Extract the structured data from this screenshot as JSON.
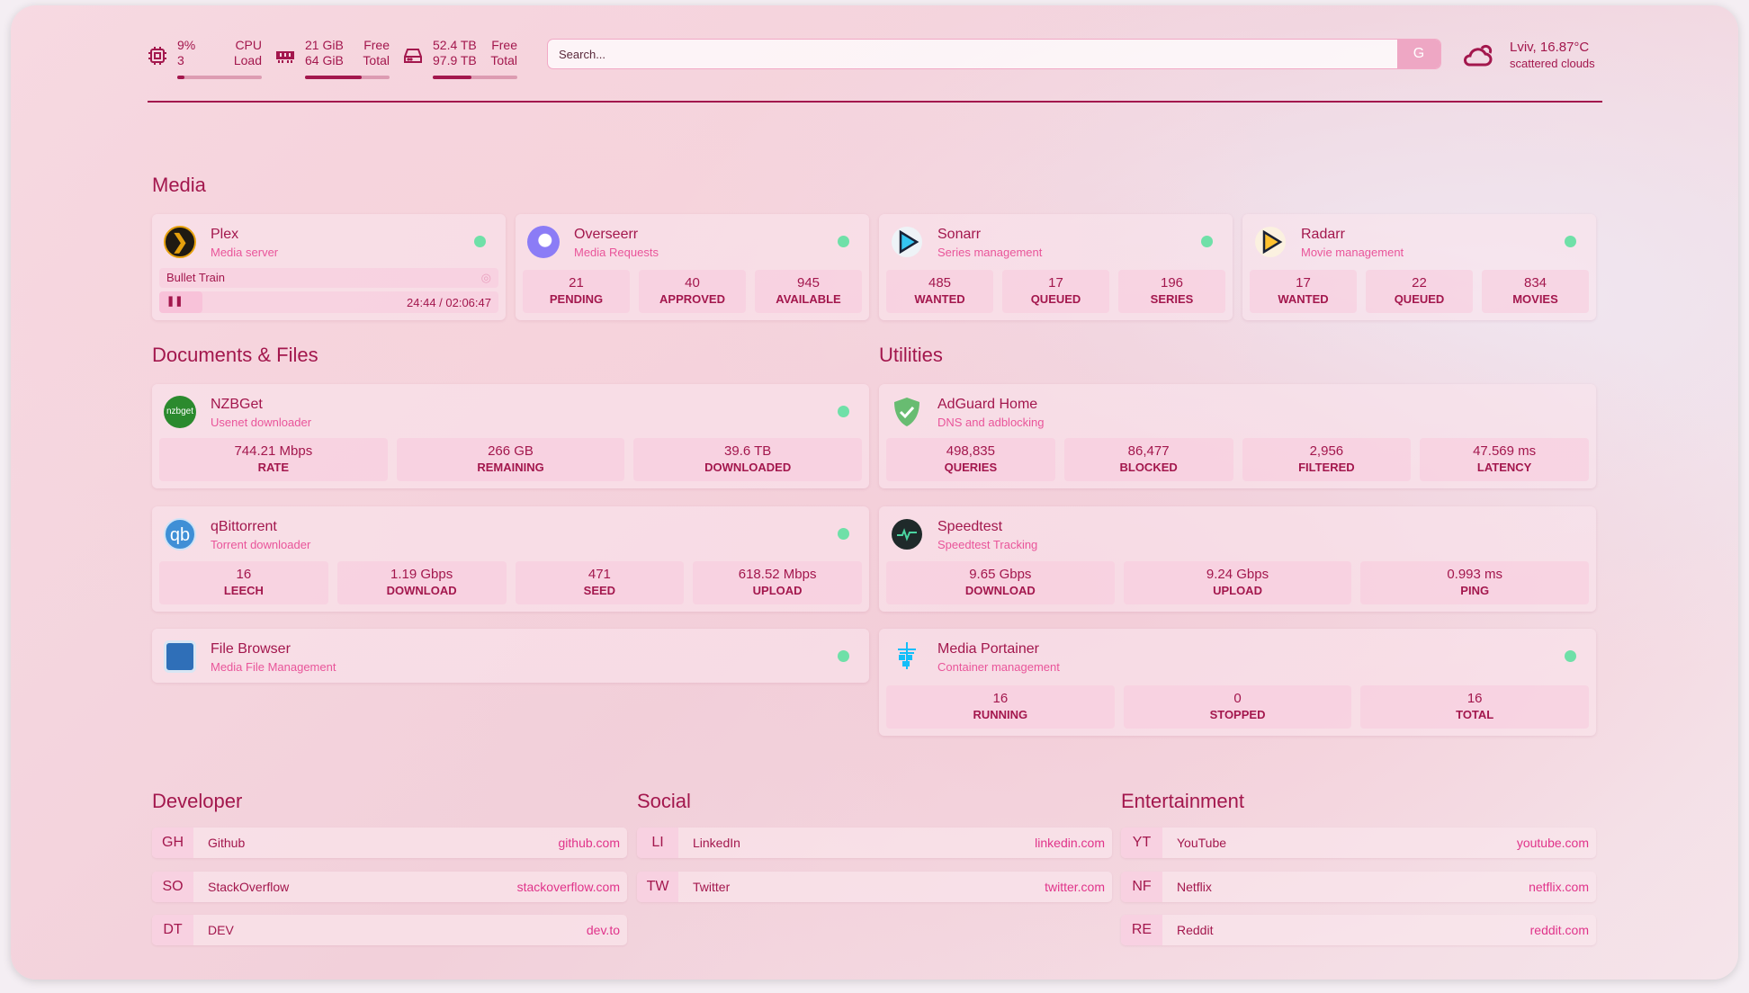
{
  "header": {
    "cpu": {
      "icon": "cpu-icon",
      "value": "9%",
      "cores": "3",
      "label1": "CPU",
      "label2": "Load",
      "fill": 9
    },
    "memory": {
      "icon": "memory-icon",
      "free": "21 GiB",
      "total": "64 GiB",
      "label1": "Free",
      "label2": "Total",
      "fill": 67
    },
    "disk": {
      "icon": "disk-icon",
      "free": "52.4 TB",
      "total": "97.9 TB",
      "label1": "Free",
      "label2": "Total",
      "fill": 46
    },
    "search": {
      "placeholder": "Search...",
      "button": "G"
    },
    "weather": {
      "icon": "cloud-sun-icon",
      "location": "Lviv, 16.87°C",
      "desc": "scattered clouds"
    }
  },
  "sections": {
    "media": "Media",
    "docs": "Documents & Files",
    "utilities": "Utilities",
    "developer": "Developer",
    "social": "Social",
    "entertainment": "Entertainment"
  },
  "media": {
    "plex": {
      "title": "Plex",
      "subtitle": "Media server",
      "now_playing": "Bullet Train",
      "progress": "24:44 / 02:06:47"
    },
    "overseerr": {
      "title": "Overseerr",
      "subtitle": "Media Requests",
      "stats": [
        {
          "v": "21",
          "k": "PENDING"
        },
        {
          "v": "40",
          "k": "APPROVED"
        },
        {
          "v": "945",
          "k": "AVAILABLE"
        }
      ]
    },
    "sonarr": {
      "title": "Sonarr",
      "subtitle": "Series management",
      "stats": [
        {
          "v": "485",
          "k": "WANTED"
        },
        {
          "v": "17",
          "k": "QUEUED"
        },
        {
          "v": "196",
          "k": "SERIES"
        }
      ]
    },
    "radarr": {
      "title": "Radarr",
      "subtitle": "Movie management",
      "stats": [
        {
          "v": "17",
          "k": "WANTED"
        },
        {
          "v": "22",
          "k": "QUEUED"
        },
        {
          "v": "834",
          "k": "MOVIES"
        }
      ]
    }
  },
  "docs": {
    "nzbget": {
      "title": "NZBGet",
      "subtitle": "Usenet downloader",
      "logo": "nzbget",
      "stats": [
        {
          "v": "744.21 Mbps",
          "k": "RATE"
        },
        {
          "v": "266 GB",
          "k": "REMAINING"
        },
        {
          "v": "39.6 TB",
          "k": "DOWNLOADED"
        }
      ]
    },
    "qbit": {
      "title": "qBittorrent",
      "subtitle": "Torrent downloader",
      "logo": "qb",
      "stats": [
        {
          "v": "16",
          "k": "LEECH"
        },
        {
          "v": "1.19 Gbps",
          "k": "DOWNLOAD"
        },
        {
          "v": "471",
          "k": "SEED"
        },
        {
          "v": "618.52 Mbps",
          "k": "UPLOAD"
        }
      ]
    },
    "filebrowser": {
      "title": "File Browser",
      "subtitle": "Media File Management"
    }
  },
  "utilities": {
    "adguard": {
      "title": "AdGuard Home",
      "subtitle": "DNS and adblocking",
      "stats": [
        {
          "v": "498,835",
          "k": "QUERIES"
        },
        {
          "v": "86,477",
          "k": "BLOCKED"
        },
        {
          "v": "2,956",
          "k": "FILTERED"
        },
        {
          "v": "47.569 ms",
          "k": "LATENCY"
        }
      ]
    },
    "speedtest": {
      "title": "Speedtest",
      "subtitle": "Speedtest Tracking",
      "stats": [
        {
          "v": "9.65 Gbps",
          "k": "DOWNLOAD"
        },
        {
          "v": "9.24 Gbps",
          "k": "UPLOAD"
        },
        {
          "v": "0.993 ms",
          "k": "PING"
        }
      ]
    },
    "portainer": {
      "title": "Media Portainer",
      "subtitle": "Container management",
      "stats": [
        {
          "v": "16",
          "k": "RUNNING"
        },
        {
          "v": "0",
          "k": "STOPPED"
        },
        {
          "v": "16",
          "k": "TOTAL"
        }
      ]
    }
  },
  "bookmarks": {
    "developer": [
      {
        "abbr": "GH",
        "name": "Github",
        "url": "github.com"
      },
      {
        "abbr": "SO",
        "name": "StackOverflow",
        "url": "stackoverflow.com"
      },
      {
        "abbr": "DT",
        "name": "DEV",
        "url": "dev.to"
      }
    ],
    "social": [
      {
        "abbr": "LI",
        "name": "LinkedIn",
        "url": "linkedin.com"
      },
      {
        "abbr": "TW",
        "name": "Twitter",
        "url": "twitter.com"
      }
    ],
    "entertainment": [
      {
        "abbr": "YT",
        "name": "YouTube",
        "url": "youtube.com"
      },
      {
        "abbr": "NF",
        "name": "Netflix",
        "url": "netflix.com"
      },
      {
        "abbr": "RE",
        "name": "Reddit",
        "url": "reddit.com"
      }
    ]
  },
  "colors": {
    "accent": "#a3174d",
    "subtitle": "#e9559a",
    "status_ok": "#6fe0a8"
  }
}
